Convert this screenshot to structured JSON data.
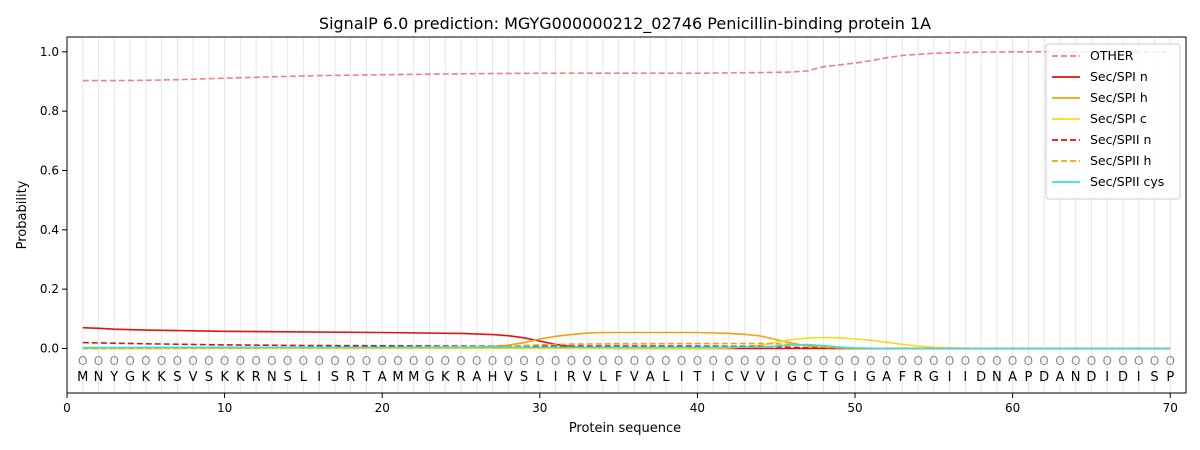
{
  "chart_data": {
    "type": "line",
    "title": "SignalP 6.0 prediction: MGYG000000212_02746 Penicillin-binding protein 1A",
    "xlabel": "Protein sequence",
    "ylabel": "Probability",
    "xlim": [
      0,
      71
    ],
    "ylim": [
      -0.15,
      1.05
    ],
    "x_ticks": [
      0,
      10,
      20,
      30,
      40,
      50,
      60,
      70
    ],
    "y_ticks": [
      0.0,
      0.2,
      0.4,
      0.6,
      0.8,
      1.0
    ],
    "x_tick_labels": [
      "0",
      "10",
      "20",
      "30",
      "40",
      "50",
      "60",
      "70"
    ],
    "y_tick_labels": [
      "0.0",
      "0.2",
      "0.4",
      "0.6",
      "0.8",
      "1.0"
    ],
    "grid": "vertical lines at each residue",
    "legend_position": "top-right",
    "sequence": [
      "M",
      "N",
      "Y",
      "G",
      "K",
      "K",
      "S",
      "V",
      "S",
      "K",
      "K",
      "R",
      "N",
      "S",
      "L",
      "I",
      "S",
      "R",
      "T",
      "A",
      "M",
      "M",
      "G",
      "K",
      "R",
      "A",
      "H",
      "V",
      "S",
      "L",
      "I",
      "R",
      "V",
      "L",
      "F",
      "V",
      "A",
      "L",
      "I",
      "T",
      "I",
      "C",
      "V",
      "V",
      "I",
      "G",
      "C",
      "T",
      "G",
      "I",
      "G",
      "A",
      "F",
      "R",
      "G",
      "I",
      "I",
      "D",
      "N",
      "A",
      "P",
      "D",
      "A",
      "N",
      "D",
      "I",
      "D",
      "I",
      "S",
      "P"
    ],
    "region_labels": [
      "O",
      "O",
      "O",
      "O",
      "O",
      "O",
      "O",
      "O",
      "O",
      "O",
      "O",
      "O",
      "O",
      "O",
      "O",
      "O",
      "O",
      "O",
      "O",
      "O",
      "O",
      "O",
      "O",
      "O",
      "O",
      "O",
      "O",
      "O",
      "O",
      "O",
      "O",
      "O",
      "O",
      "O",
      "O",
      "O",
      "O",
      "O",
      "O",
      "O",
      "O",
      "O",
      "O",
      "O",
      "O",
      "O",
      "O",
      "O",
      "O",
      "O",
      "O",
      "O",
      "O",
      "O",
      "O",
      "O",
      "O",
      "O",
      "O",
      "O",
      "O",
      "O",
      "O",
      "O",
      "O",
      "O",
      "O",
      "O",
      "O",
      "O"
    ],
    "series": [
      {
        "name": "OTHER",
        "color": "#f08080",
        "dash": "dashed",
        "x": [
          1,
          3,
          5,
          7,
          10,
          13,
          16,
          20,
          25,
          30,
          35,
          40,
          44,
          46,
          47,
          48,
          50,
          51,
          52,
          53,
          55,
          57,
          60,
          65,
          70
        ],
        "y": [
          0.903,
          0.903,
          0.904,
          0.906,
          0.911,
          0.916,
          0.92,
          0.923,
          0.926,
          0.928,
          0.928,
          0.928,
          0.93,
          0.932,
          0.936,
          0.95,
          0.962,
          0.97,
          0.98,
          0.988,
          0.995,
          0.998,
          1.0,
          1.0,
          1.0
        ]
      },
      {
        "name": "Sec/SPI n",
        "color": "#e8120c",
        "dash": "solid",
        "x": [
          1,
          2,
          3,
          5,
          10,
          15,
          20,
          25,
          27,
          28,
          29,
          30,
          31,
          32,
          33,
          35,
          40,
          70
        ],
        "y": [
          0.07,
          0.068,
          0.065,
          0.062,
          0.058,
          0.056,
          0.054,
          0.051,
          0.047,
          0.043,
          0.036,
          0.025,
          0.014,
          0.006,
          0.002,
          0.0,
          0.0,
          0.0
        ]
      },
      {
        "name": "Sec/SPI h",
        "color": "#f0a30a",
        "dash": "solid",
        "x": [
          1,
          25,
          27,
          28,
          29,
          30,
          31,
          32,
          33,
          34,
          36,
          38,
          40,
          42,
          43,
          44,
          45,
          46,
          47,
          48,
          50,
          70
        ],
        "y": [
          0.0,
          0.003,
          0.006,
          0.011,
          0.02,
          0.032,
          0.041,
          0.047,
          0.052,
          0.054,
          0.054,
          0.054,
          0.054,
          0.051,
          0.048,
          0.042,
          0.03,
          0.018,
          0.008,
          0.003,
          0.0,
          0.0
        ]
      },
      {
        "name": "Sec/SPI c",
        "color": "#fada17",
        "dash": "solid",
        "x": [
          1,
          40,
          42,
          44,
          45,
          46,
          47,
          48,
          49,
          50,
          51,
          52,
          53,
          54,
          55,
          56,
          57,
          60,
          70
        ],
        "y": [
          0.0,
          0.0,
          0.002,
          0.01,
          0.022,
          0.03,
          0.035,
          0.037,
          0.036,
          0.032,
          0.028,
          0.021,
          0.014,
          0.008,
          0.004,
          0.002,
          0.001,
          0.0,
          0.0
        ]
      },
      {
        "name": "Sec/SPII n",
        "color": "#d4150f",
        "dash": "dashed",
        "x": [
          1,
          3,
          5,
          10,
          15,
          20,
          25,
          30,
          35,
          40,
          44,
          45,
          46,
          47,
          48,
          49,
          50,
          70
        ],
        "y": [
          0.02,
          0.018,
          0.016,
          0.012,
          0.01,
          0.009,
          0.008,
          0.008,
          0.008,
          0.008,
          0.007,
          0.006,
          0.004,
          0.002,
          0.001,
          0.0,
          0.0,
          0.0
        ]
      },
      {
        "name": "Sec/SPII h",
        "color": "#f5a00a",
        "dash": "dashed",
        "x": [
          1,
          10,
          20,
          25,
          28,
          30,
          32,
          35,
          40,
          44,
          45,
          46,
          47,
          48,
          49,
          50,
          70
        ],
        "y": [
          0.0,
          0.002,
          0.004,
          0.006,
          0.008,
          0.012,
          0.015,
          0.016,
          0.017,
          0.017,
          0.016,
          0.013,
          0.009,
          0.005,
          0.002,
          0.0,
          0.0
        ]
      },
      {
        "name": "Sec/SPII cys",
        "color": "#33e0e8",
        "dash": "solid",
        "x": [
          1,
          5,
          10,
          20,
          30,
          40,
          44,
          45,
          46,
          47,
          48,
          49,
          50,
          52,
          70
        ],
        "y": [
          0.003,
          0.004,
          0.004,
          0.004,
          0.004,
          0.004,
          0.005,
          0.008,
          0.012,
          0.013,
          0.01,
          0.005,
          0.002,
          0.0,
          0.0
        ]
      }
    ]
  }
}
